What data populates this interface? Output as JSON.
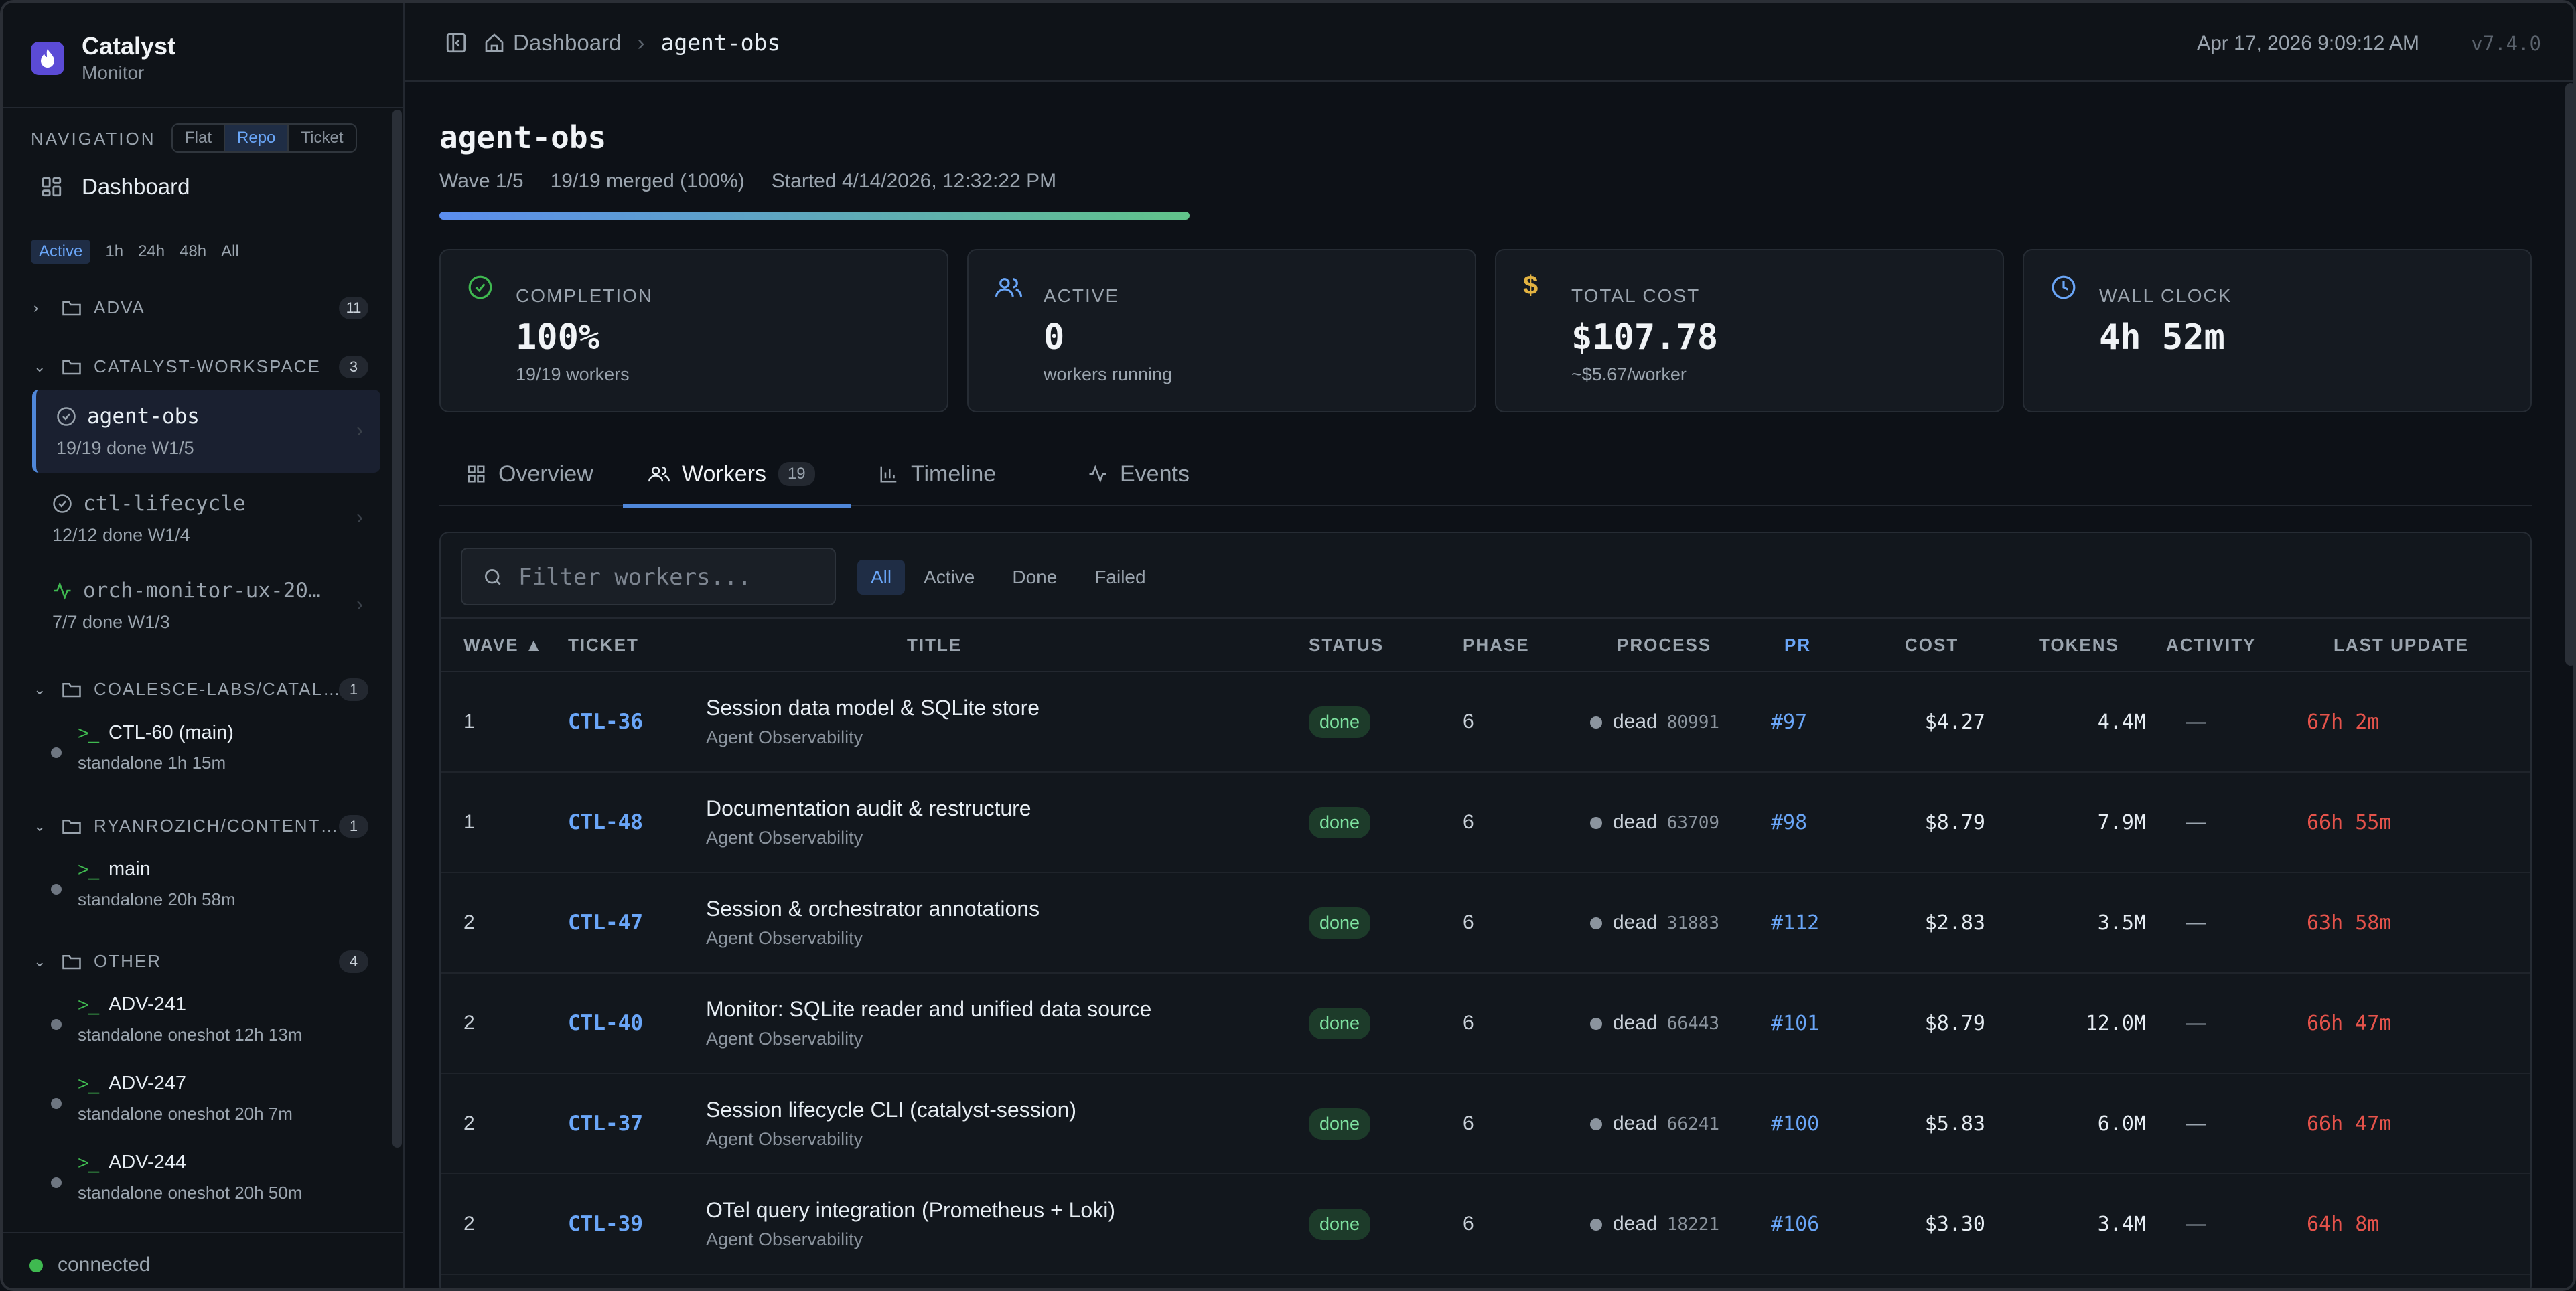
{
  "app": {
    "name": "Catalyst",
    "subtitle": "Monitor",
    "version": "v7.4.0",
    "datetime": "Apr 17, 2026 9:09:12 AM"
  },
  "sidebar": {
    "nav_label": "NAVIGATION",
    "view_modes": [
      "Flat",
      "Repo",
      "Ticket"
    ],
    "active_view_mode": "Repo",
    "dashboard_label": "Dashboard",
    "time_filters": [
      "Active",
      "1h",
      "24h",
      "48h",
      "All"
    ],
    "active_time_filter": "Active",
    "groups": [
      {
        "name": "ADVA",
        "count": "11",
        "expanded": false
      },
      {
        "name": "CATALYST-WORKSPACE",
        "count": "3",
        "expanded": true,
        "items": [
          {
            "name": "agent-obs",
            "meta": "19/19 done   W1/5",
            "selected": true,
            "icon": "check-circle-icon"
          },
          {
            "name": "ctl-lifecycle",
            "meta": "12/12 done   W1/4",
            "selected": false,
            "icon": "check-circle-icon"
          },
          {
            "name": "orch-monitor-ux-20…",
            "meta": "7/7 done   W1/3",
            "selected": false,
            "icon": "activity-icon"
          }
        ]
      },
      {
        "name": "COALESCE-LABS/CATAL…",
        "count": "1",
        "expanded": true,
        "items": [
          {
            "name": "CTL-60 (main)",
            "meta": "standalone   1h 15m"
          }
        ]
      },
      {
        "name": "RYANROZICH/CONTENT…",
        "count": "1",
        "expanded": true,
        "items": [
          {
            "name": "main",
            "meta": "standalone   20h 58m"
          }
        ]
      },
      {
        "name": "OTHER",
        "count": "4",
        "expanded": true,
        "items": [
          {
            "name": "ADV-241",
            "meta": "standalone   oneshot   12h 13m"
          },
          {
            "name": "ADV-247",
            "meta": "standalone   oneshot   20h 7m"
          },
          {
            "name": "ADV-244",
            "meta": "standalone   oneshot   20h 50m"
          }
        ]
      }
    ],
    "connection_status": "connected"
  },
  "breadcrumb": {
    "home": "Dashboard",
    "current": "agent-obs"
  },
  "orchestrator": {
    "title": "agent-obs",
    "wave": "Wave 1/5",
    "merged": "19/19 merged (100%)",
    "started": "Started 4/14/2026, 12:32:22 PM",
    "progress_fraction": 1.0
  },
  "stats": [
    {
      "label": "COMPLETION",
      "value": "100%",
      "sub": "19/19 workers",
      "icon": "check-circle-icon",
      "color": "#3fb950"
    },
    {
      "label": "ACTIVE",
      "value": "0",
      "sub": "workers running",
      "icon": "users-icon",
      "color": "#6aa6f8"
    },
    {
      "label": "TOTAL COST",
      "value": "$107.78",
      "sub": "~$5.67/worker",
      "icon": "dollar-icon",
      "color": "#e3b341"
    },
    {
      "label": "WALL CLOCK",
      "value": "4h 52m",
      "sub": "",
      "icon": "clock-icon",
      "color": "#6aa6f8"
    }
  ],
  "tabs": [
    {
      "label": "Overview",
      "icon": "grid-icon"
    },
    {
      "label": "Workers",
      "icon": "users-icon",
      "badge": "19",
      "active": true
    },
    {
      "label": "Timeline",
      "icon": "bar-chart-icon"
    },
    {
      "label": "Events",
      "icon": "activity-icon"
    }
  ],
  "workers": {
    "filter_placeholder": "Filter workers...",
    "status_filters": [
      "All",
      "Active",
      "Done",
      "Failed"
    ],
    "active_status_filter": "All",
    "columns": [
      "WAVE ▲",
      "TICKET",
      "TITLE",
      "STATUS",
      "PHASE",
      "PROCESS",
      "PR",
      "COST",
      "TOKENS",
      "ACTIVITY",
      "LAST UPDATE"
    ],
    "rows": [
      {
        "wave": "1",
        "ticket": "CTL-36",
        "title": "Session data model & SQLite store",
        "project": "Agent Observability",
        "status": "done",
        "phase": "6",
        "process": "dead",
        "pid": "80991",
        "pr": "#97",
        "cost": "$4.27",
        "tokens": "4.4M",
        "activity": "—",
        "last_update": "67h 2m"
      },
      {
        "wave": "1",
        "ticket": "CTL-48",
        "title": "Documentation audit & restructure",
        "project": "Agent Observability",
        "status": "done",
        "phase": "6",
        "process": "dead",
        "pid": "63709",
        "pr": "#98",
        "cost": "$8.79",
        "tokens": "7.9M",
        "activity": "—",
        "last_update": "66h 55m"
      },
      {
        "wave": "2",
        "ticket": "CTL-47",
        "title": "Session & orchestrator annotations",
        "project": "Agent Observability",
        "status": "done",
        "phase": "6",
        "process": "dead",
        "pid": "31883",
        "pr": "#112",
        "cost": "$2.83",
        "tokens": "3.5M",
        "activity": "—",
        "last_update": "63h 58m"
      },
      {
        "wave": "2",
        "ticket": "CTL-40",
        "title": "Monitor: SQLite reader and unified data source",
        "project": "Agent Observability",
        "status": "done",
        "phase": "6",
        "process": "dead",
        "pid": "66443",
        "pr": "#101",
        "cost": "$8.79",
        "tokens": "12.0M",
        "activity": "—",
        "last_update": "66h 47m"
      },
      {
        "wave": "2",
        "ticket": "CTL-37",
        "title": "Session lifecycle CLI (catalyst-session)",
        "project": "Agent Observability",
        "status": "done",
        "phase": "6",
        "process": "dead",
        "pid": "66241",
        "pr": "#100",
        "cost": "$5.83",
        "tokens": "6.0M",
        "activity": "—",
        "last_update": "66h 47m"
      },
      {
        "wave": "2",
        "ticket": "CTL-39",
        "title": "OTel query integration (Prometheus + Loki)",
        "project": "Agent Observability",
        "status": "done",
        "phase": "6",
        "process": "dead",
        "pid": "18221",
        "pr": "#106",
        "cost": "$3.30",
        "tokens": "3.4M",
        "activity": "—",
        "last_update": "64h 8m"
      }
    ]
  }
}
